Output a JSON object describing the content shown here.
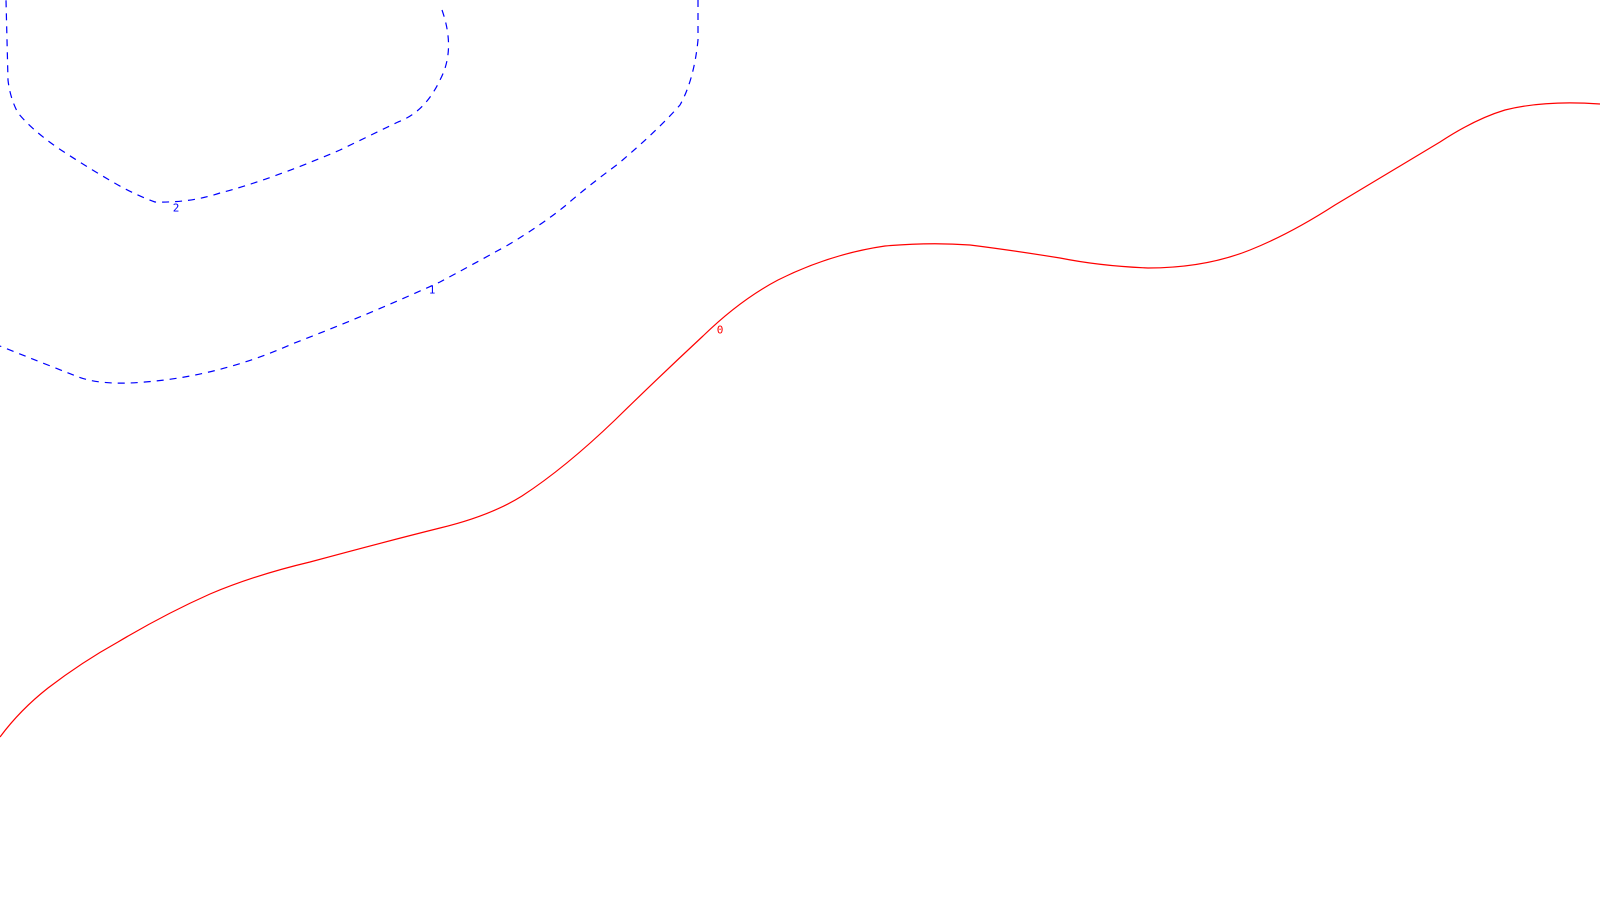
{
  "chart_data": {
    "type": "contour",
    "levels": [
      {
        "value": 2,
        "label": "2",
        "color": "#0000ff",
        "style": "dashed"
      },
      {
        "value": 1,
        "label": "1",
        "color": "#0000ff",
        "style": "dashed"
      },
      {
        "value": 0,
        "label": "0",
        "color": "#ff0000",
        "style": "solid"
      }
    ],
    "background": "#ffffff",
    "axes_visible": false,
    "legend": "none"
  }
}
